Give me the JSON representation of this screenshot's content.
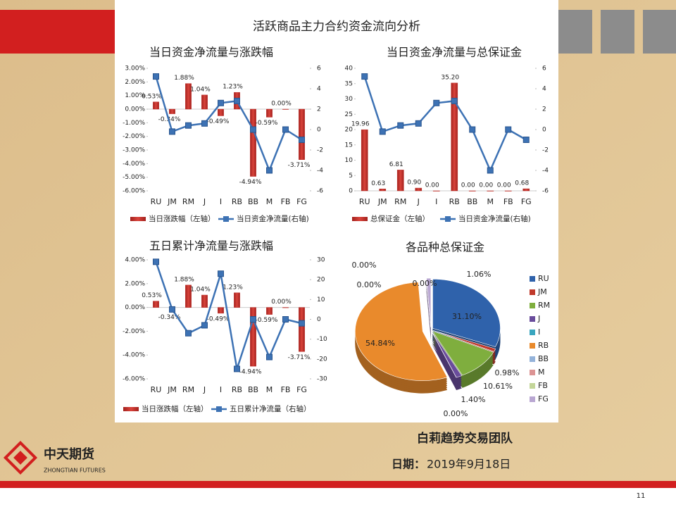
{
  "title": "活跃商品主力合约资金流向分析",
  "chart_data": [
    {
      "type": "bar-line",
      "title": "当日资金净流量与涨跌幅",
      "categories": [
        "RU",
        "JM",
        "RM",
        "J",
        "I",
        "RB",
        "BB",
        "M",
        "FB",
        "FG"
      ],
      "ylim": [
        -6,
        3
      ],
      "yticks": [
        {
          "value": 3,
          "label": "3.00%"
        },
        {
          "value": 2,
          "label": "2.00%"
        },
        {
          "value": 1,
          "label": "1.00%"
        },
        {
          "value": 0,
          "label": "0.00%"
        },
        {
          "value": -1,
          "label": "-1.00%"
        },
        {
          "value": -2,
          "label": "-2.00%"
        },
        {
          "value": -3,
          "label": "-3.00%"
        },
        {
          "value": -4,
          "label": "-4.00%"
        },
        {
          "value": -5,
          "label": "-5.00%"
        },
        {
          "value": -6,
          "label": "-6.00%"
        }
      ],
      "y2lim": [
        -6,
        6
      ],
      "y2ticks": [
        6,
        4,
        2,
        0,
        -2,
        -4,
        -6
      ],
      "series": [
        {
          "name": "当日涨跌幅（左轴）",
          "color": "#c0302b",
          "values": [
            0.53,
            -0.34,
            1.88,
            1.04,
            -0.49,
            1.23,
            -4.94,
            -0.59,
            0.0,
            -3.71
          ],
          "value_labels": [
            "0.53%",
            "-0.34%",
            "1.88%",
            "1.04%",
            "-0.49%",
            "1.23%",
            "-4.94%",
            "-0.59%",
            "0.00%",
            "-3.71%"
          ]
        },
        {
          "name": "当日资金净流量(右轴)",
          "color": "#3d72b4",
          "axis": "y2",
          "values": [
            5.2,
            -0.2,
            0.4,
            0.6,
            2.6,
            2.8,
            0,
            -4,
            0,
            -1
          ]
        }
      ]
    },
    {
      "type": "bar-line",
      "title": "当日资金净流量与总保证金",
      "categories": [
        "RU",
        "JM",
        "RM",
        "J",
        "I",
        "RB",
        "BB",
        "M",
        "FB",
        "FG"
      ],
      "ylim": [
        0,
        40
      ],
      "yticks": [
        40,
        35,
        30,
        25,
        20,
        15,
        10,
        5,
        0
      ],
      "y2lim": [
        -6,
        6
      ],
      "y2ticks": [
        6,
        4,
        2,
        0,
        -2,
        -4,
        -6
      ],
      "series": [
        {
          "name": "总保证金（左轴）",
          "color": "#c0302b",
          "values": [
            19.96,
            0.63,
            6.81,
            0.9,
            0.0,
            35.2,
            0.0,
            0.0,
            0.0,
            0.68
          ],
          "value_labels": [
            "19.96",
            "0.63",
            "6.81",
            "0.90",
            "0.00",
            "35.20",
            "0.00",
            "0.00",
            "0.00",
            "0.68"
          ]
        },
        {
          "name": "当日资金净流量(右轴)",
          "color": "#3d72b4",
          "axis": "y2",
          "values": [
            5.2,
            -0.2,
            0.4,
            0.6,
            2.6,
            2.8,
            0,
            -4,
            0,
            -1
          ]
        }
      ]
    },
    {
      "type": "bar-line",
      "title": "五日累计净流量与涨跌幅",
      "categories": [
        "RU",
        "JM",
        "RM",
        "J",
        "I",
        "RB",
        "BB",
        "M",
        "FB",
        "FG"
      ],
      "ylim": [
        -6,
        4
      ],
      "yticks": [
        {
          "value": 4,
          "label": "4.00%"
        },
        {
          "value": 2,
          "label": "2.00%"
        },
        {
          "value": 0,
          "label": "0.00%"
        },
        {
          "value": -2,
          "label": "-2.00%"
        },
        {
          "value": -4,
          "label": "-4.00%"
        },
        {
          "value": -6,
          "label": "-6.00%"
        }
      ],
      "y2lim": [
        -30,
        30
      ],
      "y2ticks": [
        30,
        20,
        10,
        0,
        -10,
        -20,
        -30
      ],
      "series": [
        {
          "name": "当日涨跌幅（左轴）",
          "color": "#c0302b",
          "values": [
            0.53,
            -0.34,
            1.88,
            1.04,
            -0.49,
            1.23,
            -4.94,
            -0.59,
            0.0,
            -3.71
          ],
          "value_labels": [
            "0.53%",
            "-0.34%",
            "1.88%",
            "1.04%",
            "-0.49%",
            "1.23%",
            "-4.94%",
            "-0.59%",
            "0.00%",
            "-3.71%"
          ]
        },
        {
          "name": "五日累计净流量（右轴）",
          "color": "#3d72b4",
          "axis": "y2",
          "values": [
            29,
            5,
            -7,
            -3,
            23,
            -25,
            0,
            -19,
            0,
            -2
          ]
        }
      ]
    },
    {
      "type": "pie",
      "title": "各品种总保证金",
      "categories": [
        "RU",
        "JM",
        "RM",
        "J",
        "I",
        "RB",
        "BB",
        "M",
        "FB",
        "FG"
      ],
      "values": [
        31.1,
        0.98,
        10.61,
        1.4,
        0.0,
        54.84,
        0.0,
        0.0,
        0.0,
        1.06
      ],
      "value_labels": [
        "31.10%",
        "0.98%",
        "10.61%",
        "1.40%",
        "0.00%",
        "54.84%",
        "0.00%",
        "0.00%",
        "0.00%",
        "1.06%"
      ],
      "colors": [
        "#2f62ab",
        "#c0392b",
        "#7fae3e",
        "#6a4c9c",
        "#3aa6bf",
        "#e98a2c",
        "#94b3da",
        "#dc9494",
        "#c4d69a",
        "#b9a7d2"
      ]
    }
  ],
  "footer": {
    "team": "白莉趋势交易团队",
    "date_label": "日期：",
    "date": "2019年9月18日"
  },
  "logo": {
    "name": "中天期货",
    "sub": "ZHONGTIAN FUTURES"
  },
  "page_number": "11"
}
